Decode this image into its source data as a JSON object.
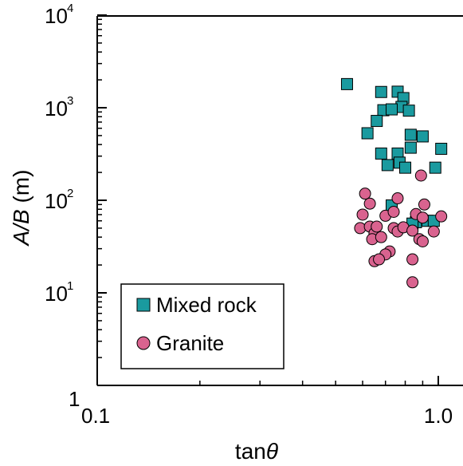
{
  "chart_data": {
    "type": "scatter",
    "title": "",
    "xlabel_main": "tan",
    "xlabel_symbol": "θ",
    "ylabel_italic": "A/B",
    "ylabel_unit": " (m)",
    "xscale": "log",
    "yscale": "log",
    "xlim": [
      0.1,
      1.1
    ],
    "ylim": [
      1,
      10000
    ],
    "x_ticks": [
      {
        "value": 0.1,
        "label": "0.1"
      },
      {
        "value": 1.0,
        "label": "1.0"
      }
    ],
    "y_ticks": [
      {
        "value": 1,
        "base": "1",
        "exp": ""
      },
      {
        "value": 10,
        "base": "10",
        "exp": "1"
      },
      {
        "value": 100,
        "base": "10",
        "exp": "2"
      },
      {
        "value": 1000,
        "base": "10",
        "exp": "3"
      },
      {
        "value": 10000,
        "base": "10",
        "exp": "4"
      }
    ],
    "legend_position": "bottom-left",
    "grid": false,
    "series": [
      {
        "name": "Mixed rock",
        "marker": "square",
        "color": "#1a9a9f",
        "points": [
          [
            0.54,
            1800
          ],
          [
            0.68,
            1480
          ],
          [
            0.76,
            1490
          ],
          [
            0.79,
            1270
          ],
          [
            0.78,
            1020
          ],
          [
            0.69,
            940
          ],
          [
            0.73,
            960
          ],
          [
            0.82,
            930
          ],
          [
            0.66,
            720
          ],
          [
            0.62,
            530
          ],
          [
            0.83,
            510
          ],
          [
            0.9,
            490
          ],
          [
            0.68,
            320
          ],
          [
            0.76,
            320
          ],
          [
            0.83,
            370
          ],
          [
            1.02,
            360
          ],
          [
            0.71,
            240
          ],
          [
            0.77,
            255
          ],
          [
            0.8,
            225
          ],
          [
            0.98,
            225
          ],
          [
            0.73,
            88
          ],
          [
            0.93,
            60
          ],
          [
            0.97,
            60
          ],
          [
            0.86,
            58
          ],
          [
            0.84,
            56
          ]
        ]
      },
      {
        "name": "Granite",
        "marker": "circle",
        "color": "#d9638f",
        "points": [
          [
            0.61,
            118
          ],
          [
            0.63,
            92
          ],
          [
            0.76,
            105
          ],
          [
            0.89,
            185
          ],
          [
            0.91,
            90
          ],
          [
            0.6,
            70
          ],
          [
            0.7,
            68
          ],
          [
            0.74,
            75
          ],
          [
            0.86,
            71
          ],
          [
            0.9,
            65
          ],
          [
            1.02,
            67
          ],
          [
            0.59,
            50
          ],
          [
            0.63,
            52
          ],
          [
            0.65,
            44
          ],
          [
            0.66,
            52
          ],
          [
            0.74,
            50
          ],
          [
            0.76,
            46
          ],
          [
            0.79,
            51
          ],
          [
            0.84,
            47
          ],
          [
            0.97,
            46
          ],
          [
            0.64,
            38
          ],
          [
            0.68,
            40
          ],
          [
            0.88,
            38
          ],
          [
            0.9,
            36
          ],
          [
            0.72,
            28
          ],
          [
            0.7,
            26
          ],
          [
            0.65,
            22
          ],
          [
            0.67,
            23
          ],
          [
            0.84,
            23
          ],
          [
            0.84,
            13
          ]
        ]
      }
    ]
  }
}
